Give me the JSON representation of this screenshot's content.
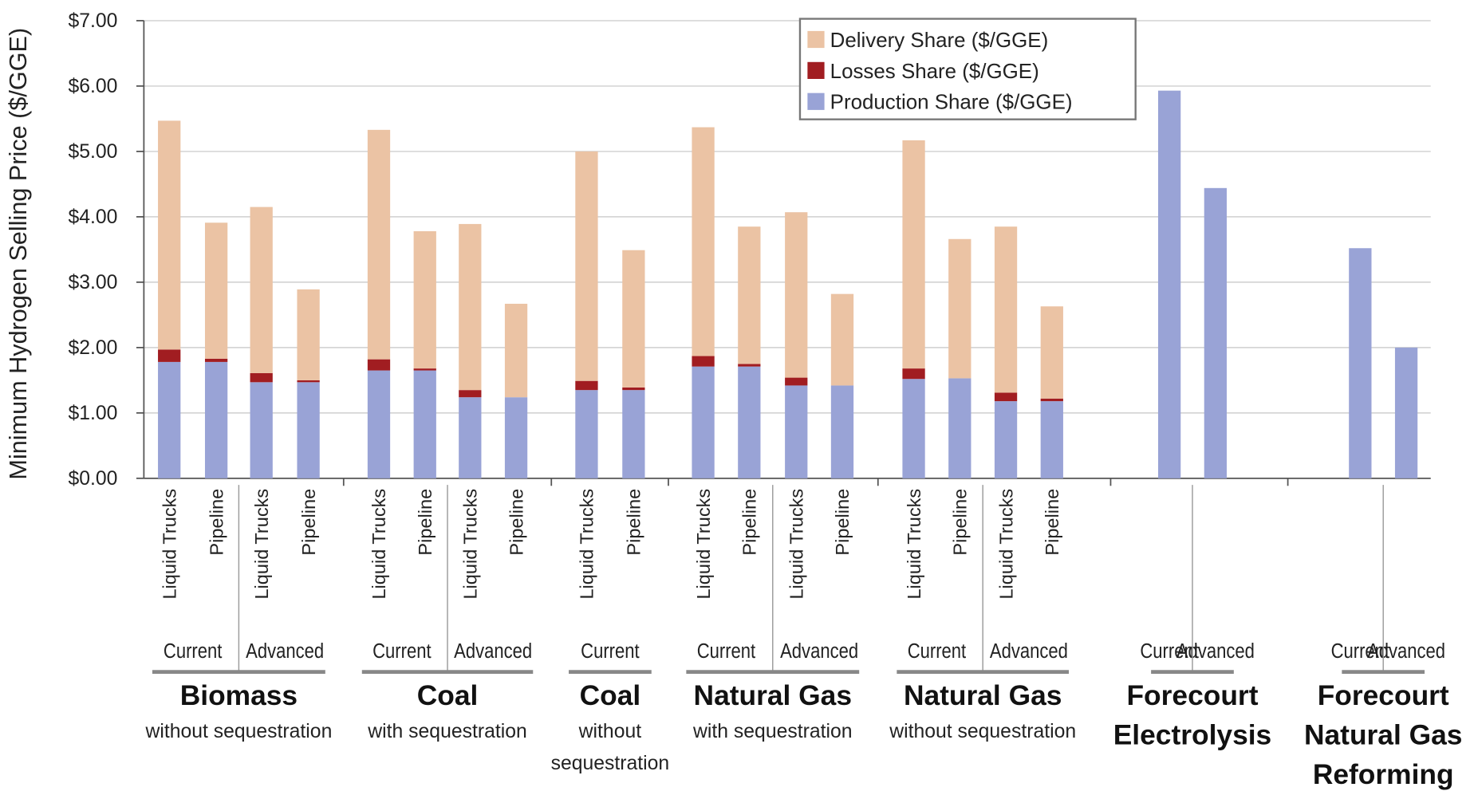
{
  "chart_data": {
    "type": "stacked_bar",
    "y_label": "Minimum Hydrogen Selling Price ($/GGE)",
    "ylim": [
      0,
      7
    ],
    "yticks": [
      {
        "value": 0,
        "label": "$0.00"
      },
      {
        "value": 1,
        "label": "$1.00"
      },
      {
        "value": 2,
        "label": "$2.00"
      },
      {
        "value": 3,
        "label": "$3.00"
      },
      {
        "value": 4,
        "label": "$4.00"
      },
      {
        "value": 5,
        "label": "$5.00"
      },
      {
        "value": 6,
        "label": "$6.00"
      },
      {
        "value": 7,
        "label": "$7.00"
      }
    ],
    "grid": true,
    "groups": [
      {
        "name": "Biomass",
        "subtitle": "without sequestration",
        "subgroups": [
          {
            "label": "Current",
            "bars": [
              "Liquid Trucks",
              "Pipeline"
            ]
          },
          {
            "label": "Advanced",
            "bars": [
              "Liquid Trucks",
              "Pipeline"
            ]
          }
        ]
      },
      {
        "name": "Coal",
        "subtitle": "with sequestration",
        "subgroups": [
          {
            "label": "Current",
            "bars": [
              "Liquid Trucks",
              "Pipeline"
            ]
          },
          {
            "label": "Advanced",
            "bars": [
              "Liquid Trucks",
              "Pipeline"
            ]
          }
        ]
      },
      {
        "name": "Coal",
        "subtitle": "without sequestration",
        "subgroups": [
          {
            "label": "Current",
            "bars": [
              "Liquid Trucks",
              "Pipeline"
            ]
          }
        ]
      },
      {
        "name": "Natural Gas",
        "subtitle": "with sequestration",
        "subgroups": [
          {
            "label": "Current",
            "bars": [
              "Liquid Trucks",
              "Pipeline"
            ]
          },
          {
            "label": "Advanced",
            "bars": [
              "Liquid Trucks",
              "Pipeline"
            ]
          }
        ]
      },
      {
        "name": "Natural Gas",
        "subtitle": "without sequestration",
        "subgroups": [
          {
            "label": "Current",
            "bars": [
              "Liquid Trucks",
              "Pipeline"
            ]
          },
          {
            "label": "Advanced",
            "bars": [
              "Liquid Trucks",
              "Pipeline"
            ]
          }
        ]
      },
      {
        "name": "Forecourt Electrolysis",
        "subgroups": [
          {
            "label": "Current",
            "bars": [
              null
            ]
          },
          {
            "label": "Advanced",
            "bars": [
              null
            ]
          }
        ]
      },
      {
        "name": "Forecourt Natural Gas Reforming",
        "subgroups": [
          {
            "label": "Current",
            "bars": [
              null
            ]
          },
          {
            "label": "Advanced",
            "bars": [
              null
            ]
          }
        ]
      }
    ],
    "series": [
      {
        "name": "Production Share ($/GGE)",
        "color": "#99a3d6",
        "values": [
          1.78,
          1.78,
          1.47,
          1.47,
          1.65,
          1.65,
          1.24,
          1.24,
          1.35,
          1.35,
          1.71,
          1.71,
          1.42,
          1.42,
          1.52,
          1.53,
          1.18,
          1.18,
          5.93,
          4.44,
          3.52,
          2.0
        ]
      },
      {
        "name": "Losses Share ($/GGE)",
        "color": "#a11d21",
        "values": [
          0.19,
          0.05,
          0.14,
          0.03,
          0.17,
          0.03,
          0.11,
          0.0,
          0.14,
          0.04,
          0.16,
          0.04,
          0.12,
          0.0,
          0.16,
          0.0,
          0.13,
          0.04,
          null,
          null,
          null,
          null
        ]
      },
      {
        "name": "Delivery Share ($/GGE)",
        "color": "#ebc3a4",
        "values": [
          3.5,
          2.08,
          2.54,
          1.39,
          3.51,
          2.1,
          2.54,
          1.43,
          3.51,
          2.1,
          3.5,
          2.1,
          2.53,
          1.4,
          3.49,
          2.13,
          2.54,
          1.41,
          null,
          null,
          null,
          null
        ]
      }
    ],
    "legend": "top-right"
  }
}
